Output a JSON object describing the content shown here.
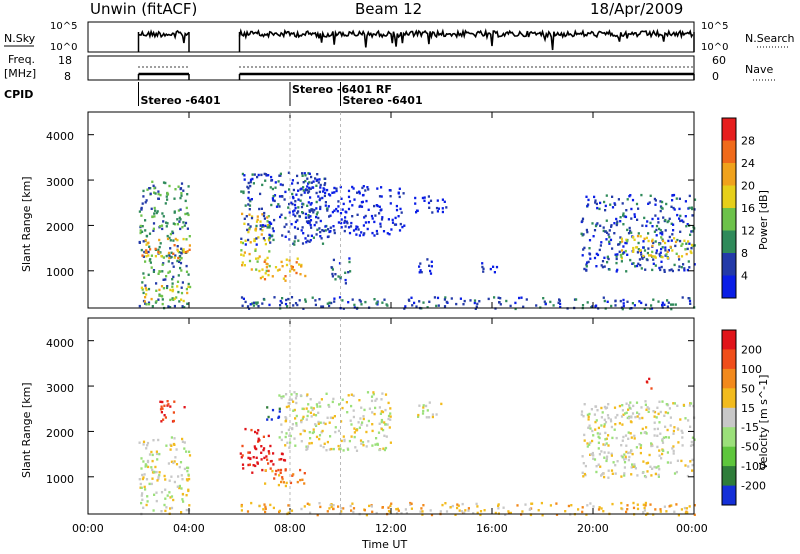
{
  "header": {
    "title_left": "Unwin (fitACF)",
    "title_center": "Beam 12",
    "title_right": "18/Apr/2009"
  },
  "strips": {
    "nsky_label": "N.Sky",
    "nsky_ticks": [
      "10^5",
      "10^0"
    ],
    "nsearch_label": "N.Search",
    "nsearch_ticks": [
      "10^5",
      "10^0"
    ],
    "freq_label": "Freq.",
    "freq_unit": "[MHz]",
    "freq_ticks": [
      "18",
      "8"
    ],
    "nave_label": "Nave",
    "nave_ticks": [
      "60",
      "0"
    ],
    "cpid_label": "CPID",
    "cpid_segments": [
      {
        "t": 2.0,
        "label": "Stereo -6401",
        "row": 2
      },
      {
        "t": 8.0,
        "label": "Stereo -6401 RF",
        "row": 1
      },
      {
        "t": 10.0,
        "label": "Stereo -6401",
        "row": 2
      }
    ],
    "freq_bars": [
      [
        2.0,
        4.0
      ],
      [
        6.0,
        24.0
      ]
    ]
  },
  "chart_data": [
    {
      "type": "heatmap",
      "name": "power",
      "ylabel": "Slant Range [km]",
      "ylim": [
        180,
        4500
      ],
      "yticks": [
        "1000",
        "2000",
        "3000",
        "4000"
      ],
      "xlim": [
        0,
        24
      ],
      "colorbar": {
        "label": "Power [dB]",
        "ticks": [
          "4",
          "8",
          "12",
          "16",
          "20",
          "24",
          "28"
        ],
        "colors": [
          "#0a1ee6",
          "#233aa8",
          "#2f8a5a",
          "#6cc24a",
          "#e6cf1a",
          "#f0a21c",
          "#f06a1a",
          "#e61e1e"
        ]
      },
      "regions": [
        {
          "t0": 2.0,
          "t1": 4.0,
          "r0": 200,
          "r1": 3000,
          "level": 2
        },
        {
          "t0": 2.0,
          "t1": 4.0,
          "r0": 1300,
          "r1": 1750,
          "level": 5
        },
        {
          "t0": 2.0,
          "t1": 4.0,
          "r0": 350,
          "r1": 700,
          "level": 4
        },
        {
          "t0": 6.0,
          "t1": 7.2,
          "r0": 1000,
          "r1": 2300,
          "level": 4
        },
        {
          "t0": 6.8,
          "t1": 8.6,
          "r0": 800,
          "r1": 1300,
          "level": 5
        },
        {
          "t0": 6.0,
          "t1": 9.5,
          "r0": 1600,
          "r1": 3200,
          "level": 1
        },
        {
          "t0": 8.0,
          "t1": 12.5,
          "r0": 1800,
          "r1": 2900,
          "level": 0
        },
        {
          "t0": 9.6,
          "t1": 10.4,
          "r0": 700,
          "r1": 1300,
          "level": 1
        },
        {
          "t0": 12.8,
          "t1": 14.2,
          "r0": 2300,
          "r1": 2700,
          "level": 0
        },
        {
          "t0": 13.0,
          "t1": 13.6,
          "r0": 900,
          "r1": 1400,
          "level": 0
        },
        {
          "t0": 15.5,
          "t1": 16.2,
          "r0": 900,
          "r1": 1200,
          "level": 0
        },
        {
          "t0": 19.5,
          "t1": 24.0,
          "r0": 1000,
          "r1": 2700,
          "level": 1
        },
        {
          "t0": 21.0,
          "t1": 24.0,
          "r0": 1300,
          "r1": 1800,
          "level": 4
        },
        {
          "t0": 6.0,
          "t1": 24.0,
          "r0": 180,
          "r1": 450,
          "level": 1
        }
      ]
    },
    {
      "type": "heatmap",
      "name": "velocity",
      "ylabel": "Slant Range [km]",
      "xlabel": "Time UT",
      "ylim": [
        180,
        4500
      ],
      "yticks": [
        "1000",
        "2000",
        "3000",
        "4000"
      ],
      "xlim": [
        0,
        24
      ],
      "xticks": [
        "00:00",
        "04:00",
        "08:00",
        "12:00",
        "16:00",
        "20:00",
        "00:00"
      ],
      "colorbar": {
        "label": "Velocity [m s^-1]",
        "ticks": [
          "200",
          "100",
          "50",
          "15",
          "-15",
          "-50",
          "-100",
          "-200"
        ],
        "colors": [
          "#1530d8",
          "#2f7d3a",
          "#5ec63c",
          "#9be07a",
          "#c8c8c8",
          "#f2bb1e",
          "#f2891c",
          "#f04e1a",
          "#e0141a"
        ]
      },
      "regions": [
        {
          "t0": 2.0,
          "t1": 4.0,
          "r0": 200,
          "r1": 1900,
          "level": 4
        },
        {
          "t0": 2.8,
          "t1": 3.8,
          "r0": 2200,
          "r1": 2700,
          "level": 8
        },
        {
          "t0": 6.0,
          "t1": 7.2,
          "r0": 1100,
          "r1": 2100,
          "level": 8
        },
        {
          "t0": 6.8,
          "t1": 8.6,
          "r0": 800,
          "r1": 1200,
          "level": 6
        },
        {
          "t0": 7.0,
          "t1": 8.0,
          "r0": 1250,
          "r1": 1550,
          "level": 8
        },
        {
          "t0": 7.0,
          "t1": 7.6,
          "r0": 2200,
          "r1": 2600,
          "level": 0
        },
        {
          "t0": 7.5,
          "t1": 12.0,
          "r0": 1600,
          "r1": 2900,
          "level": 4
        },
        {
          "t0": 13.0,
          "t1": 14.0,
          "r0": 2300,
          "r1": 2700,
          "level": 4
        },
        {
          "t0": 19.5,
          "t1": 24.0,
          "r0": 1000,
          "r1": 2700,
          "level": 4
        },
        {
          "t0": 22.0,
          "t1": 22.4,
          "r0": 2900,
          "r1": 3200,
          "level": 8
        },
        {
          "t0": 6.0,
          "t1": 24.0,
          "r0": 180,
          "r1": 450,
          "level": 5
        }
      ]
    }
  ]
}
